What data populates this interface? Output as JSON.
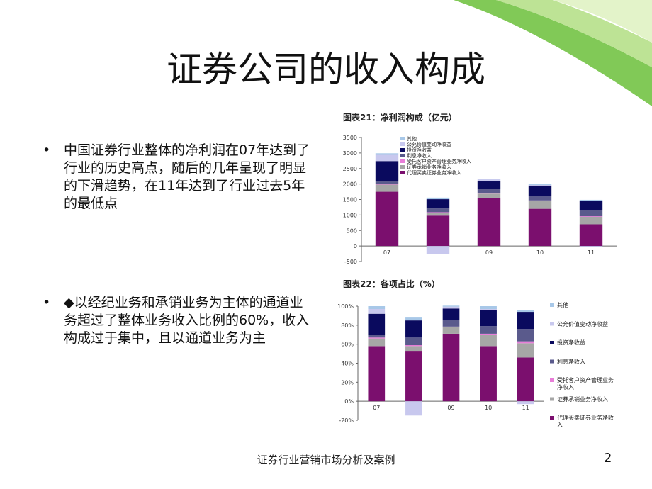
{
  "title": "证券公司的收入构成",
  "bullets": [
    "中国证券行业整体的净利润在07年达到了行业的历史高点，随后的几年呈现了明显的下滑趋势，在11年达到了行业过去5年的最低点",
    "◆以经纪业务和承销业务为主体的通道业务超过了整体业务收入比例的60%，收入构成过于集中，且以通道业务为主"
  ],
  "footer": "证券行业营销市场分析及案例",
  "page_number": "2",
  "chart_data": [
    {
      "type": "stacked-bar",
      "title": "图表21：净利润构成（亿元）",
      "categories": [
        "07",
        "08",
        "09",
        "10",
        "11"
      ],
      "ylim": [
        -500,
        3500
      ],
      "yticks": [
        -500,
        0,
        500,
        1000,
        1500,
        2000,
        2500,
        3000,
        3500
      ],
      "series": [
        {
          "name": "代理买卖证券业务净收入",
          "color": "#7b0f6e",
          "values": [
            1750,
            980,
            1550,
            1200,
            700
          ]
        },
        {
          "name": "证券承销业务净收入",
          "color": "#a6a6a6",
          "values": [
            230,
            90,
            140,
            250,
            240
          ]
        },
        {
          "name": "受托客户资产管理业务净收入",
          "color": "#e87ed8",
          "values": [
            30,
            20,
            10,
            20,
            20
          ]
        },
        {
          "name": "利息净收入",
          "color": "#5a5a8c",
          "values": [
            80,
            120,
            150,
            150,
            200
          ]
        },
        {
          "name": "投资净收益",
          "color": "#0a0a5e",
          "values": [
            650,
            300,
            250,
            330,
            300
          ]
        },
        {
          "name": "公允价值变动净收益",
          "color": "#c8c8ee",
          "values": [
            200,
            -250,
            50,
            20,
            -30
          ]
        },
        {
          "name": "其他",
          "color": "#a8c8e8",
          "values": [
            50,
            50,
            20,
            30,
            30
          ]
        }
      ]
    },
    {
      "type": "stacked-bar",
      "title": "图表22：各项占比（%）",
      "categories": [
        "07",
        "08",
        "09",
        "10",
        "11"
      ],
      "ylim": [
        -20,
        100
      ],
      "yticks": [
        {
          "value": -20,
          "label": "-20%"
        },
        {
          "value": 0,
          "label": "0%"
        },
        {
          "value": 20,
          "label": "20%"
        },
        {
          "value": 40,
          "label": "40%"
        },
        {
          "value": 60,
          "label": "60%"
        },
        {
          "value": 80,
          "label": "80%"
        },
        {
          "value": 100,
          "label": "100%"
        }
      ],
      "series": [
        {
          "name": "代理买卖证券业务净收入",
          "color": "#7b0f6e",
          "values": [
            58,
            53,
            71,
            58,
            46
          ]
        },
        {
          "name": "证券承销业务净收入",
          "color": "#a6a6a6",
          "values": [
            8,
            5,
            7,
            12,
            15
          ]
        },
        {
          "name": "受托客户资产管理业务净收入",
          "color": "#e87ed8",
          "values": [
            1,
            1,
            0.5,
            1,
            2
          ]
        },
        {
          "name": "利息净收入",
          "color": "#5a5a8c",
          "values": [
            3,
            8,
            7,
            8,
            13
          ]
        },
        {
          "name": "投资净收益",
          "color": "#0a0a5e",
          "values": [
            22,
            18,
            12,
            17,
            18
          ]
        },
        {
          "name": "公允价值变动净收益",
          "color": "#c8c8ee",
          "values": [
            5,
            -15,
            2,
            1,
            -3
          ]
        },
        {
          "name": "其他",
          "color": "#a8c8e8",
          "values": [
            3,
            3,
            1,
            3,
            2
          ]
        }
      ]
    }
  ]
}
